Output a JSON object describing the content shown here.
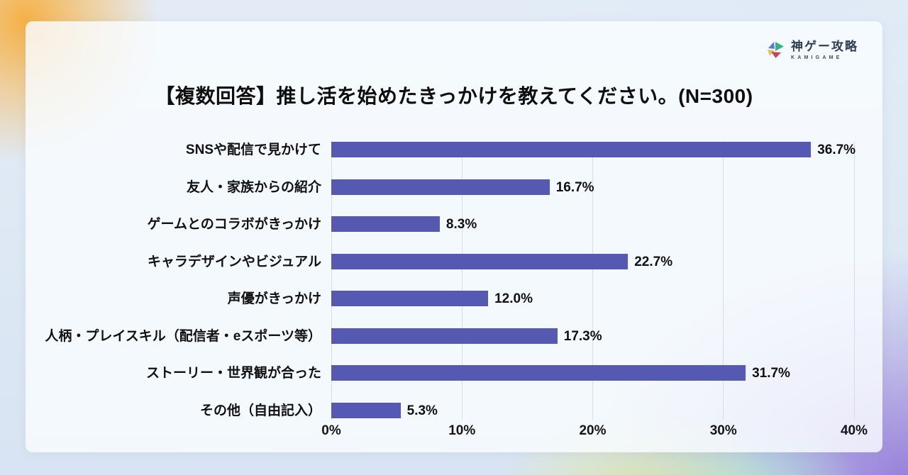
{
  "logo": {
    "brand": "神ゲー攻略",
    "sub": "KAMIGAME",
    "icon_colors": {
      "blue": "#4d7fd0",
      "teal": "#35b28a",
      "yellow": "#e5c54f",
      "red": "#c2485f"
    }
  },
  "title": "【複数回答】推し活を始めたきっかけを教えてください。(N=300)",
  "chart_data": {
    "type": "bar",
    "orientation": "horizontal",
    "title": "【複数回答】推し活を始めたきっかけを教えてください。(N=300)",
    "categories": [
      "SNSや配信で見かけて",
      "友人・家族からの紹介",
      "ゲームとのコラボがきっかけ",
      "キャラデザインやビジュアル",
      "声優がきっかけ",
      "人柄・プレイスキル（配信者・eスポーツ等）",
      "ストーリー・世界観が合った",
      "その他（自由記入）"
    ],
    "values": [
      36.7,
      16.7,
      8.3,
      22.7,
      12.0,
      17.3,
      31.7,
      5.3
    ],
    "value_labels": [
      "36.7%",
      "16.7%",
      "8.3%",
      "22.7%",
      "12.0%",
      "17.3%",
      "31.7%",
      "5.3%"
    ],
    "x_ticks": [
      "0%",
      "10%",
      "20%",
      "30%",
      "40%"
    ],
    "xlim": [
      0,
      40
    ],
    "grid": true,
    "bar_color": "#5559b2",
    "grid_color": "#d9dde3"
  }
}
